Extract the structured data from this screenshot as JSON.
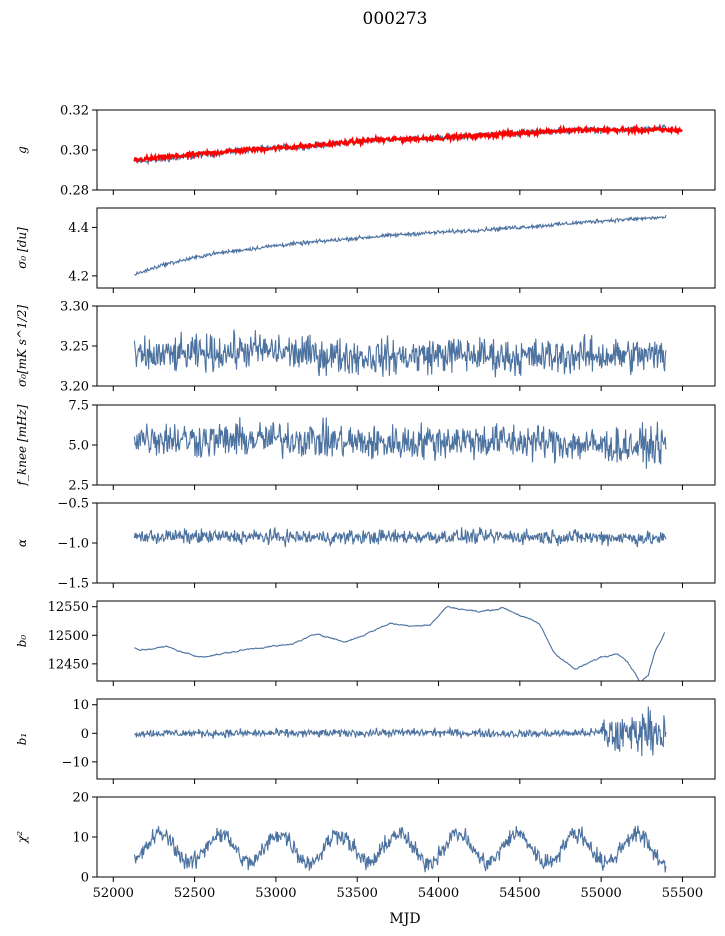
{
  "figure": {
    "title": "000273",
    "xlabel": "MJD"
  },
  "colors": {
    "series": "#4c72a0",
    "fit": "#ff0000",
    "axes": "#000000"
  },
  "chart_data": [
    {
      "type": "line",
      "ylabel": "g",
      "ylim": [
        0.28,
        0.32
      ],
      "yticks": [
        0.28,
        0.3,
        0.32
      ],
      "ytick_labels": [
        "0.28",
        "0.30",
        "0.32"
      ],
      "xlim": [
        51900,
        55700
      ],
      "series": [
        {
          "style": "noisy-line",
          "color": "#4c72a0",
          "x": [
            52130,
            52400,
            52800,
            53200,
            53600,
            54000,
            54400,
            54800,
            55200,
            55400
          ],
          "y": [
            0.294,
            0.296,
            0.3,
            0.302,
            0.305,
            0.306,
            0.308,
            0.31,
            0.31,
            0.311
          ],
          "noise": 0.0008
        },
        {
          "style": "fit-line",
          "color": "#ff0000",
          "x": [
            52130,
            52400,
            52800,
            53200,
            53600,
            54000,
            54400,
            54800,
            55200,
            55500
          ],
          "y": [
            0.295,
            0.297,
            0.3,
            0.302,
            0.305,
            0.306,
            0.308,
            0.31,
            0.31,
            0.31
          ],
          "noise": 0.0006
        }
      ]
    },
    {
      "type": "line",
      "ylabel": "σ₀ [du]",
      "ylim": [
        4.15,
        4.48
      ],
      "yticks": [
        4.2,
        4.4
      ],
      "ytick_labels": [
        "4.2",
        "4.4"
      ],
      "xlim": [
        51900,
        55700
      ],
      "series": [
        {
          "style": "noisy-line",
          "color": "#4c72a0",
          "x": [
            52130,
            52300,
            52600,
            53000,
            53400,
            53800,
            54200,
            54600,
            55000,
            55400
          ],
          "y": [
            4.205,
            4.245,
            4.29,
            4.325,
            4.35,
            4.372,
            4.387,
            4.405,
            4.427,
            4.442
          ],
          "noise": 0.004
        }
      ]
    },
    {
      "type": "line",
      "ylabel": "σ₀[mK s^1/2]",
      "ylim": [
        3.2,
        3.3
      ],
      "yticks": [
        3.2,
        3.25,
        3.3
      ],
      "ytick_labels": [
        "3.20",
        "3.25",
        "3.30"
      ],
      "xlim": [
        51900,
        55700
      ],
      "series": [
        {
          "style": "noisy-line",
          "color": "#4c72a0",
          "x": [
            52130,
            52500,
            52900,
            53300,
            53700,
            54100,
            54500,
            54900,
            55400
          ],
          "y": [
            3.236,
            3.24,
            3.245,
            3.238,
            3.236,
            3.24,
            3.236,
            3.238,
            3.238
          ],
          "noise": 0.011
        }
      ]
    },
    {
      "type": "line",
      "ylabel": "f_knee [mHz]",
      "ylim": [
        2.5,
        7.5
      ],
      "yticks": [
        2.5,
        5.0,
        7.5
      ],
      "ytick_labels": [
        "2.5",
        "5.0",
        "7.5"
      ],
      "xlim": [
        51900,
        55700
      ],
      "series": [
        {
          "style": "noisy-line",
          "color": "#4c72a0",
          "x": [
            52130,
            52600,
            53100,
            53600,
            54100,
            54600,
            55100,
            55400
          ],
          "y": [
            5.5,
            5.3,
            5.4,
            5.1,
            5.3,
            5.2,
            4.9,
            5.0
          ],
          "noise": 0.55
        }
      ]
    },
    {
      "type": "line",
      "ylabel": "α",
      "ylim": [
        -1.5,
        -0.5
      ],
      "yticks": [
        -1.5,
        -1.0,
        -0.5
      ],
      "ytick_labels": [
        "−1.5",
        "−1.0",
        "−0.5"
      ],
      "xlim": [
        51900,
        55700
      ],
      "series": [
        {
          "style": "noisy-line",
          "color": "#4c72a0",
          "x": [
            52130,
            52700,
            53300,
            53900,
            54500,
            55100,
            55400
          ],
          "y": [
            -0.92,
            -0.92,
            -0.93,
            -0.92,
            -0.92,
            -0.93,
            -0.95
          ],
          "noise": 0.045
        }
      ]
    },
    {
      "type": "line",
      "ylabel": "b₀",
      "ylim": [
        12420,
        12560
      ],
      "yticks": [
        12450,
        12500,
        12550
      ],
      "ytick_labels": [
        "12450",
        "12500",
        "12550"
      ],
      "xlim": [
        51900,
        55700
      ],
      "series": [
        {
          "style": "smooth-line",
          "color": "#4c72a0",
          "x": [
            52130,
            52160,
            52330,
            52520,
            52660,
            52880,
            53080,
            53260,
            53420,
            53520,
            53700,
            53800,
            53950,
            54050,
            54250,
            54400,
            54620,
            54710,
            54840,
            55000,
            55060,
            55100,
            55150,
            55200,
            55240,
            55290,
            55330,
            55390
          ],
          "y": [
            12478,
            12474,
            12480,
            12462,
            12467,
            12478,
            12483,
            12503,
            12488,
            12498,
            12521,
            12517,
            12518,
            12550,
            12541,
            12548,
            12520,
            12470,
            12440,
            12462,
            12465,
            12470,
            12458,
            12438,
            12418,
            12430,
            12470,
            12505
          ],
          "noise": 1.2
        }
      ]
    },
    {
      "type": "line",
      "ylabel": "b₁",
      "ylim": [
        -16,
        12
      ],
      "yticks": [
        -10,
        0,
        10
      ],
      "ytick_labels": [
        "−10",
        "0",
        "10"
      ],
      "xlim": [
        51900,
        55700
      ],
      "series": [
        {
          "style": "noisy-line",
          "color": "#4c72a0",
          "x": [
            52130,
            52700,
            53300,
            53900,
            54500,
            54800,
            55000,
            55100,
            55200,
            55300,
            55400
          ],
          "y": [
            0,
            0,
            0,
            0.3,
            -0.2,
            0,
            0.3,
            -1.0,
            0.5,
            1.5,
            0.2
          ],
          "noise": 0.7
        }
      ]
    },
    {
      "type": "line",
      "ylabel": "χ²",
      "ylim": [
        0,
        20
      ],
      "yticks": [
        0,
        10,
        20
      ],
      "ytick_labels": [
        "0",
        "10",
        "20"
      ],
      "xlim": [
        51900,
        55700
      ],
      "xticks": [
        52000,
        52500,
        53000,
        53500,
        54000,
        54500,
        55000,
        55500
      ],
      "xtick_labels": [
        "52000",
        "52500",
        "53000",
        "53500",
        "54000",
        "54500",
        "55000",
        "55500"
      ],
      "series": [
        {
          "style": "seasonal-line",
          "color": "#4c72a0",
          "x": [
            52130,
            55400
          ],
          "mean": 7.2,
          "amplitude": 3.6,
          "period": 365.25,
          "noise": 1.1
        }
      ]
    }
  ]
}
